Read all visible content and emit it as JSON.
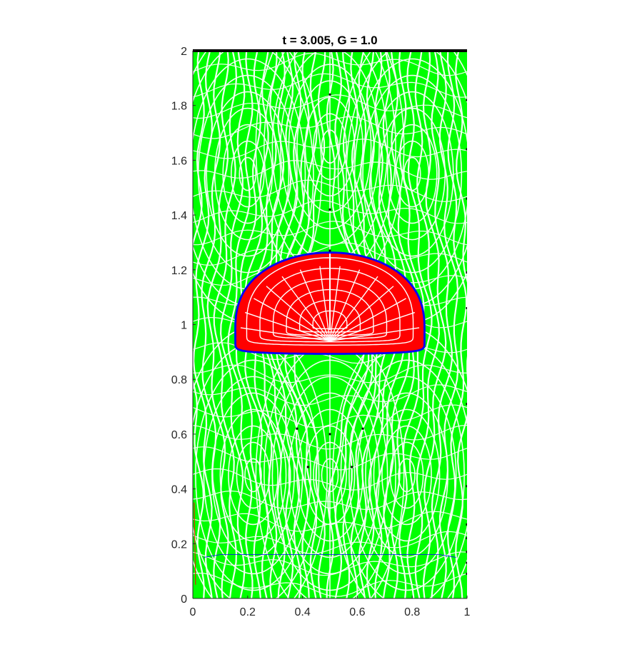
{
  "chart_data": {
    "type": "line",
    "title": "t = 3.005, G = 1.0",
    "xlim": [
      0,
      1
    ],
    "ylim": [
      0,
      2
    ],
    "xticks": [
      0,
      0.2,
      0.4,
      0.6,
      0.8,
      1
    ],
    "xtick_labels": [
      "0",
      "0.2",
      "0.4",
      "0.6",
      "0.8",
      "1"
    ],
    "yticks": [
      0,
      0.2,
      0.4,
      0.6,
      0.8,
      1,
      1.2,
      1.4,
      1.6,
      1.8,
      2
    ],
    "ytick_labels": [
      "0",
      "0.2",
      "0.4",
      "0.6",
      "0.8",
      "1",
      "1.2",
      "1.4",
      "1.6",
      "1.8",
      "2"
    ],
    "grid": false,
    "colors": {
      "outer_field": "#00ff00",
      "inner_field": "#ff0000",
      "interface": "#0000ff",
      "axis": "#262626",
      "markers": "#000000"
    },
    "interface_shape": {
      "center_x": 0.5,
      "half_width": 0.345,
      "bottom_y": 0.893,
      "top_y": 1.263,
      "widest_y": 0.98
    },
    "marker_points": [
      [
        0.5,
        1.84
      ],
      [
        0.5,
        1.42
      ],
      [
        0.5,
        1.27
      ],
      [
        1.0,
        1.82
      ],
      [
        1.0,
        1.64
      ],
      [
        1.0,
        1.46
      ],
      [
        1.0,
        1.19
      ],
      [
        1.0,
        1.06
      ],
      [
        1.0,
        0.71
      ],
      [
        1.0,
        0.41
      ],
      [
        1.0,
        0.27
      ],
      [
        1.0,
        0.22
      ],
      [
        1.0,
        0.17
      ],
      [
        1.0,
        0.13
      ],
      [
        1.0,
        0.09
      ],
      [
        0.38,
        0.62
      ],
      [
        0.62,
        0.62
      ],
      [
        0.5,
        0.6
      ],
      [
        0.42,
        0.48
      ],
      [
        0.58,
        0.48
      ]
    ]
  }
}
